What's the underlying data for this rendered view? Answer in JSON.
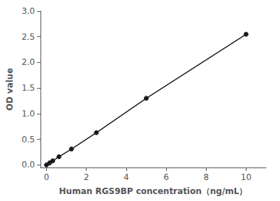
{
  "chart_data": {
    "type": "line",
    "x": [
      0,
      0.156,
      0.312,
      0.625,
      1.25,
      2.5,
      5,
      10
    ],
    "values": [
      0.0,
      0.04,
      0.08,
      0.16,
      0.31,
      0.63,
      1.3,
      2.55
    ],
    "xlabel": "Human RGS9BP concentration（ng/mL）",
    "ylabel": "OD value",
    "xlim": [
      -0.3,
      11
    ],
    "ylim": [
      -0.05,
      3.0
    ],
    "xticks": [
      0,
      2,
      4,
      6,
      8,
      10
    ],
    "yticks": [
      {
        "value": 0.0,
        "label": "0.0"
      },
      0.5,
      {
        "value": 1.0,
        "label": "1.0"
      },
      1.5,
      {
        "value": 2.0,
        "label": "2.0"
      },
      2.5,
      {
        "value": 3.0,
        "label": "3.0"
      }
    ],
    "color": "#1a1a1a",
    "marker": "circle",
    "grid": false
  }
}
